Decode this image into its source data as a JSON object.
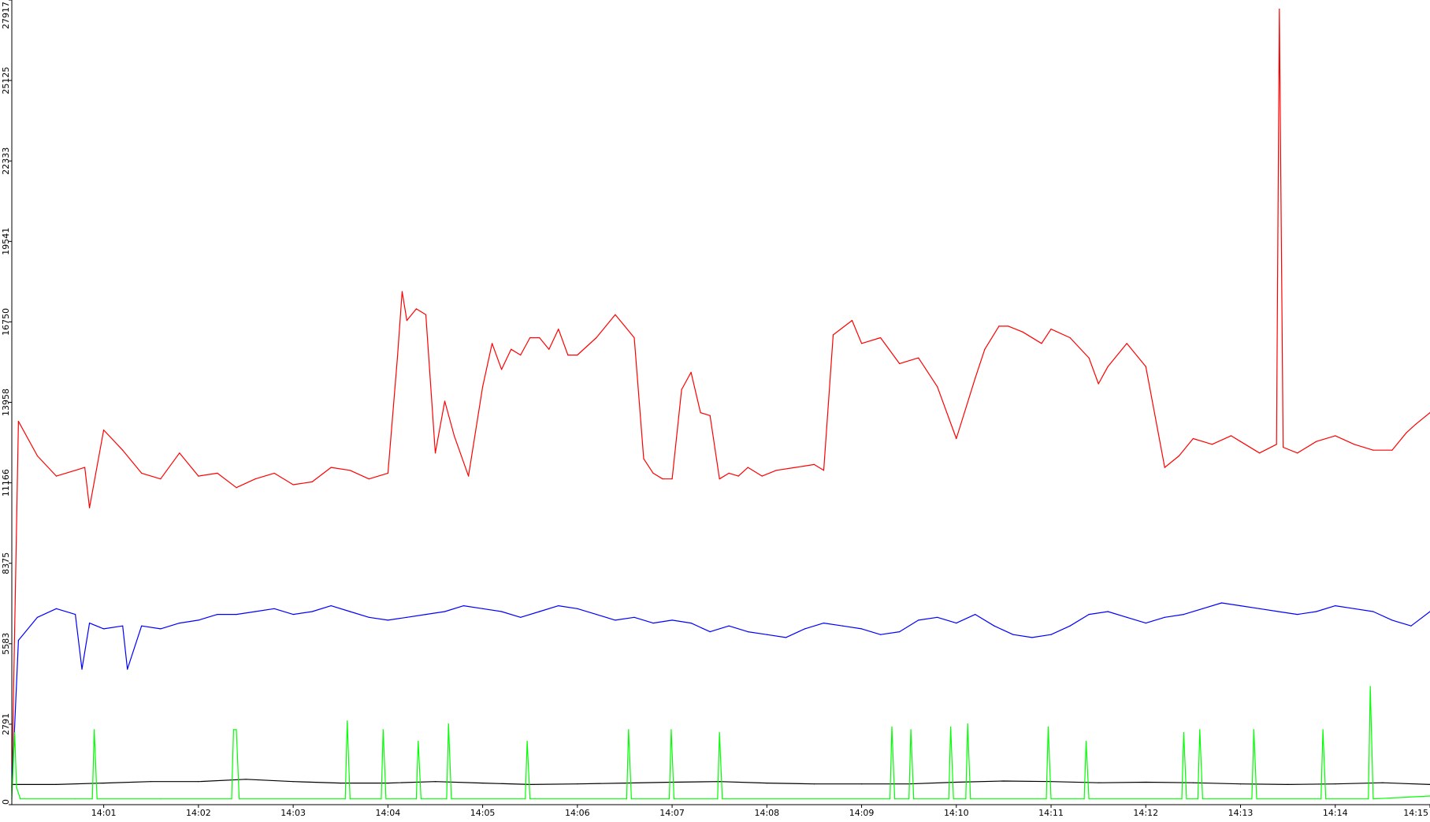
{
  "chart_data": {
    "type": "line",
    "title": "",
    "xlabel": "",
    "ylabel": "",
    "y_ticks": [
      "0",
      "2791",
      "5583",
      "8375",
      "11166",
      "13958",
      "16750",
      "19541",
      "22333",
      "25125",
      "27917"
    ],
    "ylim": [
      0,
      27917
    ],
    "x_ticks": [
      "14:01",
      "14:02",
      "14:03",
      "14:04",
      "14:05",
      "14:06",
      "14:07",
      "14:08",
      "14:09",
      "14:10",
      "14:11",
      "14:12",
      "14:13",
      "14:14",
      "14:15"
    ],
    "x_tick_minutes": [
      1,
      2,
      3,
      4,
      5,
      6,
      7,
      8,
      9,
      10,
      11,
      12,
      13,
      14,
      15
    ],
    "xlim_minutes": [
      0.03,
      15.0
    ],
    "grid": false,
    "legend": "none",
    "series": [
      {
        "color": "#ff0000",
        "x": [
          0.03,
          0.1,
          0.3,
          0.5,
          0.7,
          0.8,
          0.85,
          1.0,
          1.2,
          1.4,
          1.6,
          1.8,
          2.0,
          2.2,
          2.4,
          2.6,
          2.8,
          3.0,
          3.2,
          3.4,
          3.6,
          3.8,
          4.0,
          4.1,
          4.15,
          4.2,
          4.3,
          4.4,
          4.5,
          4.6,
          4.7,
          4.85,
          5.0,
          5.1,
          5.2,
          5.3,
          5.4,
          5.5,
          5.6,
          5.7,
          5.8,
          5.9,
          6.0,
          6.2,
          6.4,
          6.5,
          6.6,
          6.7,
          6.8,
          6.9,
          7.0,
          7.1,
          7.2,
          7.3,
          7.4,
          7.5,
          7.6,
          7.7,
          7.8,
          7.95,
          8.1,
          8.3,
          8.5,
          8.6,
          8.7,
          8.9,
          9.0,
          9.2,
          9.4,
          9.6,
          9.8,
          10.0,
          10.2,
          10.3,
          10.45,
          10.55,
          10.7,
          10.9,
          11.0,
          11.2,
          11.4,
          11.5,
          11.6,
          11.8,
          12.0,
          12.2,
          12.35,
          12.5,
          12.7,
          12.9,
          13.0,
          13.2,
          13.38,
          13.41,
          13.45,
          13.6,
          13.8,
          14.0,
          14.2,
          14.4,
          14.6,
          14.75,
          14.85,
          15.0
        ],
        "y": [
          600,
          13300,
          12100,
          11400,
          11600,
          11700,
          10300,
          13000,
          12300,
          11500,
          11300,
          12200,
          11400,
          11500,
          11000,
          11300,
          11500,
          11100,
          11200,
          11700,
          11600,
          11300,
          11500,
          15500,
          17800,
          16800,
          17200,
          17000,
          12200,
          14000,
          12800,
          11400,
          14500,
          16000,
          15100,
          15800,
          15600,
          16200,
          16200,
          15800,
          16500,
          15600,
          15600,
          16200,
          17000,
          16600,
          16200,
          12000,
          11500,
          11300,
          11300,
          14400,
          15000,
          13600,
          13500,
          11300,
          11500,
          11400,
          11700,
          11400,
          11600,
          11700,
          11800,
          11600,
          16300,
          16800,
          16000,
          16200,
          15300,
          15500,
          14500,
          12700,
          14800,
          15800,
          16600,
          16600,
          16400,
          16000,
          16500,
          16200,
          15500,
          14600,
          15200,
          16000,
          15200,
          11700,
          12100,
          12700,
          12500,
          12800,
          12600,
          12200,
          12500,
          27600,
          12400,
          12200,
          12600,
          12800,
          12500,
          12300,
          12300,
          12900,
          13200,
          13600
        ]
      },
      {
        "color": "#0000ff",
        "x": [
          0.03,
          0.1,
          0.3,
          0.5,
          0.7,
          0.77,
          0.85,
          1.0,
          1.2,
          1.25,
          1.4,
          1.6,
          1.8,
          2.0,
          2.2,
          2.4,
          2.6,
          2.8,
          3.0,
          3.2,
          3.4,
          3.6,
          3.8,
          4.0,
          4.2,
          4.4,
          4.6,
          4.8,
          5.0,
          5.2,
          5.4,
          5.6,
          5.8,
          6.0,
          6.2,
          6.4,
          6.6,
          6.8,
          7.0,
          7.2,
          7.4,
          7.6,
          7.8,
          8.0,
          8.2,
          8.4,
          8.6,
          8.8,
          9.0,
          9.2,
          9.4,
          9.6,
          9.8,
          10.0,
          10.2,
          10.4,
          10.6,
          10.8,
          11.0,
          11.2,
          11.4,
          11.6,
          11.8,
          12.0,
          12.2,
          12.4,
          12.6,
          12.8,
          13.0,
          13.2,
          13.4,
          13.6,
          13.8,
          14.0,
          14.2,
          14.4,
          14.6,
          14.8,
          15.0
        ],
        "y": [
          500,
          5700,
          6500,
          6800,
          6600,
          4700,
          6300,
          6100,
          6200,
          4700,
          6200,
          6100,
          6300,
          6400,
          6600,
          6600,
          6700,
          6800,
          6600,
          6700,
          6900,
          6700,
          6500,
          6400,
          6500,
          6600,
          6700,
          6900,
          6800,
          6700,
          6500,
          6700,
          6900,
          6800,
          6600,
          6400,
          6500,
          6300,
          6400,
          6300,
          6000,
          6200,
          6000,
          5900,
          5800,
          6100,
          6300,
          6200,
          6100,
          5900,
          6000,
          6400,
          6500,
          6300,
          6600,
          6200,
          5900,
          5800,
          5900,
          6200,
          6600,
          6700,
          6500,
          6300,
          6500,
          6600,
          6800,
          7000,
          6900,
          6800,
          6700,
          6600,
          6700,
          6900,
          6800,
          6700,
          6400,
          6200,
          6700
        ]
      },
      {
        "color": "#000000",
        "x": [
          0.03,
          0.5,
          1.0,
          1.5,
          2.0,
          2.5,
          3.0,
          3.5,
          4.0,
          4.5,
          5.0,
          5.5,
          6.0,
          6.5,
          7.0,
          7.5,
          8.0,
          8.5,
          9.0,
          9.5,
          10.0,
          10.5,
          11.0,
          11.5,
          12.0,
          12.5,
          13.0,
          13.5,
          14.0,
          14.5,
          15.0
        ],
        "y": [
          700,
          700,
          750,
          800,
          800,
          880,
          800,
          750,
          750,
          800,
          750,
          700,
          720,
          750,
          780,
          800,
          750,
          720,
          720,
          720,
          780,
          820,
          800,
          760,
          780,
          760,
          720,
          700,
          720,
          760,
          700
        ]
      },
      {
        "color": "#00ff00",
        "x": [
          0.03,
          0.06,
          0.08,
          0.12,
          0.7,
          0.88,
          0.9,
          0.93,
          1.6,
          2.35,
          2.37,
          2.4,
          2.43,
          3.55,
          3.57,
          3.6,
          3.93,
          3.95,
          3.98,
          4.3,
          4.32,
          4.35,
          4.62,
          4.64,
          4.67,
          5.45,
          5.47,
          5.5,
          6.52,
          6.54,
          6.57,
          6.97,
          6.99,
          7.02,
          7.48,
          7.5,
          7.53,
          9.3,
          9.32,
          9.35,
          9.5,
          9.52,
          9.55,
          9.92,
          9.94,
          9.97,
          10.1,
          10.12,
          10.15,
          10.95,
          10.97,
          11.0,
          11.35,
          11.37,
          11.4,
          12.38,
          12.4,
          12.43,
          12.55,
          12.57,
          12.6,
          13.12,
          13.14,
          13.17,
          13.85,
          13.87,
          13.9,
          14.35,
          14.37,
          14.4,
          15.0
        ],
        "y": [
          200,
          2500,
          600,
          200,
          200,
          200,
          2600,
          200,
          200,
          200,
          2600,
          2600,
          200,
          200,
          2900,
          200,
          200,
          2600,
          200,
          200,
          2200,
          200,
          200,
          2800,
          200,
          200,
          2200,
          200,
          200,
          2600,
          200,
          200,
          2600,
          200,
          200,
          2500,
          200,
          200,
          2700,
          200,
          200,
          2600,
          200,
          200,
          2700,
          200,
          200,
          2800,
          200,
          200,
          2700,
          200,
          200,
          2200,
          200,
          200,
          2500,
          200,
          200,
          2600,
          200,
          200,
          2600,
          200,
          200,
          2600,
          200,
          200,
          4100,
          200,
          300
        ]
      }
    ]
  }
}
